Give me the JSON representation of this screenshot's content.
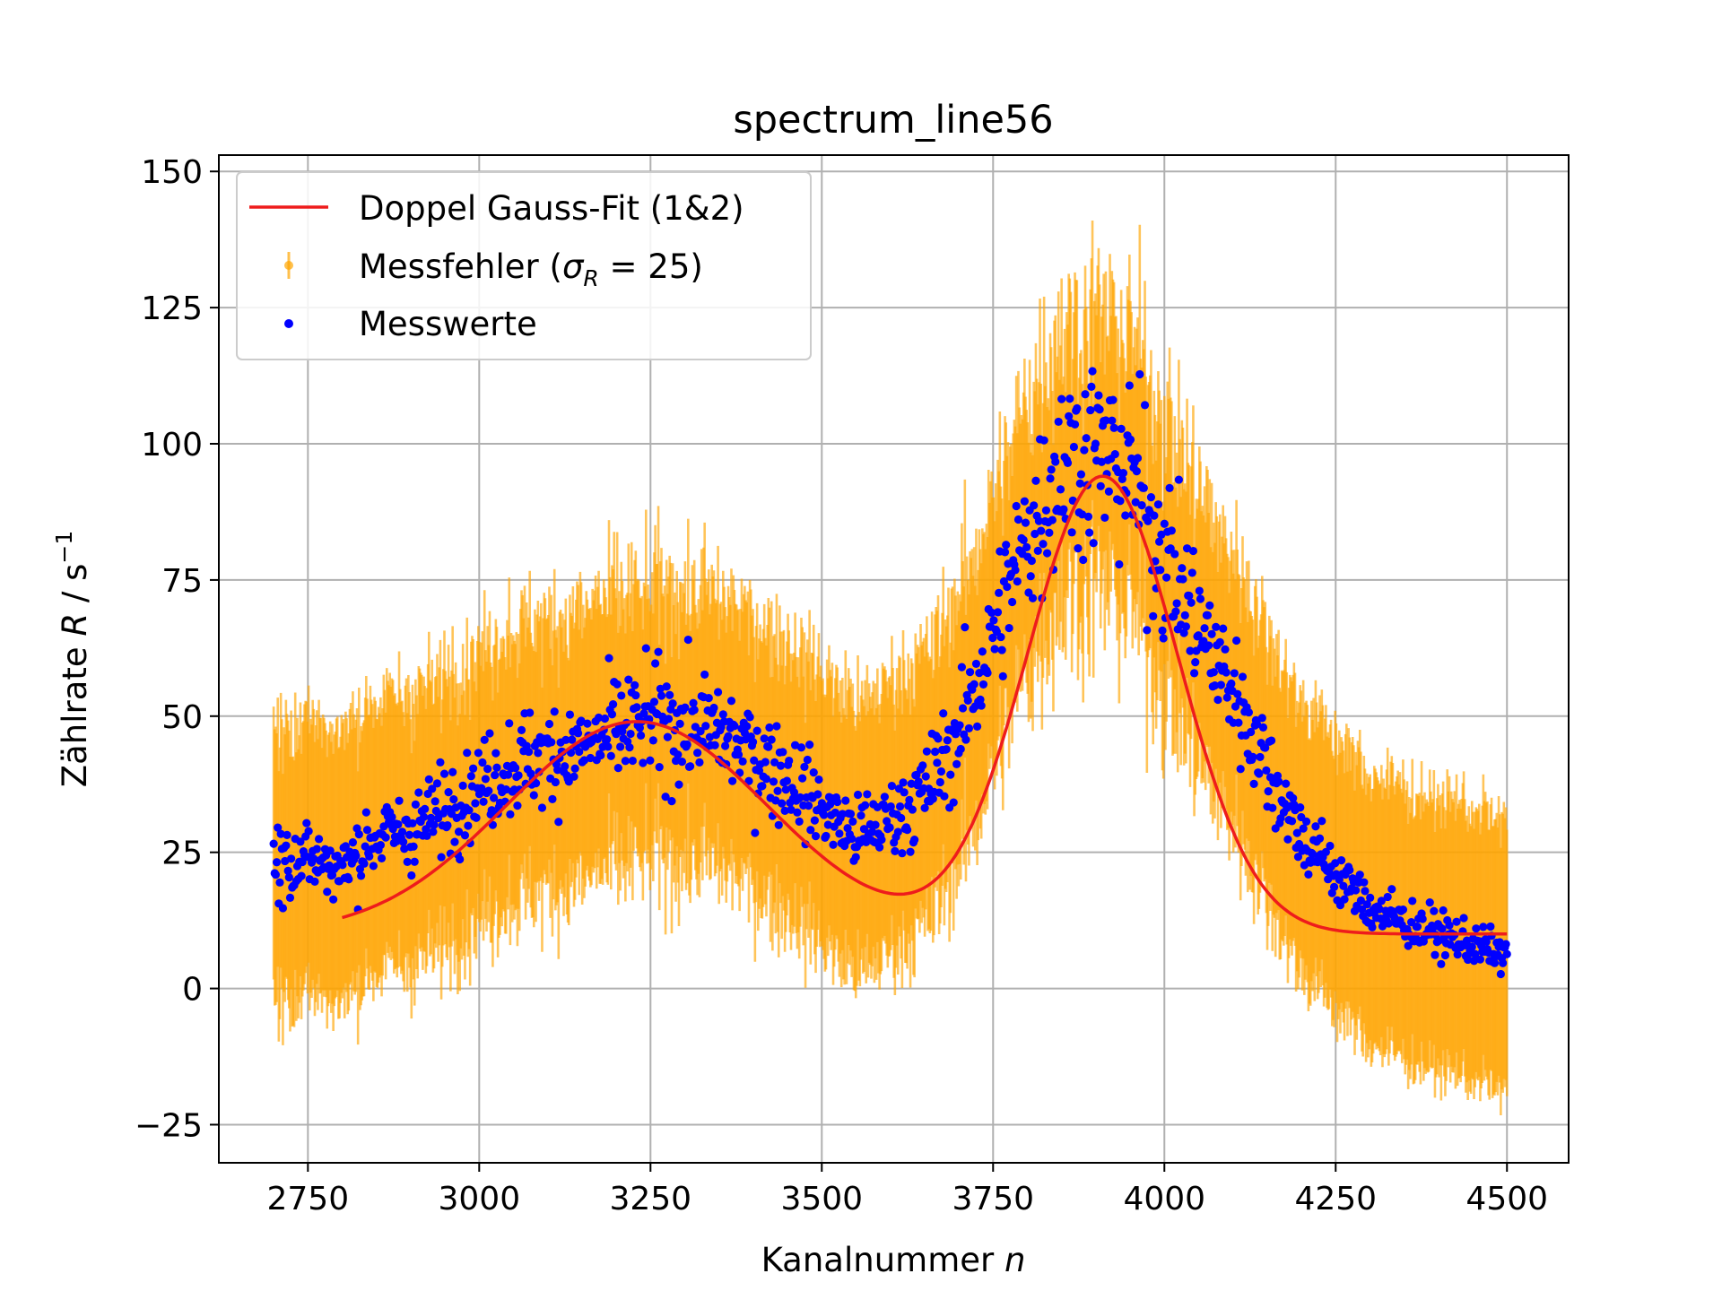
{
  "chart_data": {
    "type": "scatter",
    "title": "spectrum_line56",
    "xlabel": "Kanalnummer",
    "xlabel_var": "n",
    "ylabel": "Zählrate",
    "ylabel_var": "R",
    "ylabel_unit": "/ s",
    "ylabel_unit_exp": "−1",
    "xlim": [
      2620,
      4590
    ],
    "ylim": [
      -32,
      153
    ],
    "xticks": [
      2750,
      3000,
      3250,
      3500,
      3750,
      4000,
      4250,
      4500
    ],
    "xtick_labels": [
      "2750",
      "3000",
      "3250",
      "3500",
      "3750",
      "4000",
      "4250",
      "4500"
    ],
    "yticks": [
      -25,
      0,
      25,
      50,
      75,
      100,
      125,
      150
    ],
    "ytick_labels": [
      "−25",
      "0",
      "25",
      "50",
      "75",
      "100",
      "125",
      "150"
    ],
    "grid": true,
    "legend_position": "top-left",
    "legend": {
      "fit_label": "Doppel Gauss-Fit (1&2)",
      "error_label_prefix": "Messfehler (",
      "error_label_symbol": "σ",
      "error_label_sub": "R",
      "error_label_suffix": " = 25)",
      "data_label": "Messwerte"
    },
    "measurement_error": 25,
    "x_range": [
      2700,
      4500
    ],
    "fit": {
      "name": "Doppel Gauss-Fit (1&2)",
      "color": "#ee1c1c",
      "x_range": [
        2800,
        4500
      ],
      "baseline": 10,
      "gaussians": [
        {
          "amplitude": 39,
          "center": 3230,
          "sigma": 190
        },
        {
          "amplitude": 84,
          "center": 3910,
          "sigma": 110
        }
      ]
    },
    "series": [
      {
        "name": "Messwerte",
        "color": "#0000ff",
        "sample_x": [
          2700,
          2750,
          2800,
          2850,
          2900,
          2950,
          3000,
          3050,
          3100,
          3150,
          3200,
          3250,
          3300,
          3350,
          3400,
          3450,
          3500,
          3550,
          3600,
          3650,
          3700,
          3750,
          3800,
          3850,
          3900,
          3950,
          4000,
          4050,
          4100,
          4150,
          4200,
          4250,
          4300,
          4350,
          4400,
          4450,
          4500
        ],
        "sample_y": [
          23,
          24,
          22,
          28,
          29,
          33,
          37,
          41,
          43,
          44,
          47,
          49,
          48,
          47,
          43,
          39,
          33,
          28,
          31,
          36,
          47,
          65,
          83,
          97,
          98,
          95,
          80,
          66,
          55,
          41,
          28,
          21,
          15,
          12,
          10,
          8,
          6
        ],
        "marker_count": 1200
      }
    ],
    "colors": {
      "errorbar": "#ffa500",
      "data": "#0000ff",
      "fit": "#ee1c1c",
      "grid": "#b0b0b0"
    }
  }
}
